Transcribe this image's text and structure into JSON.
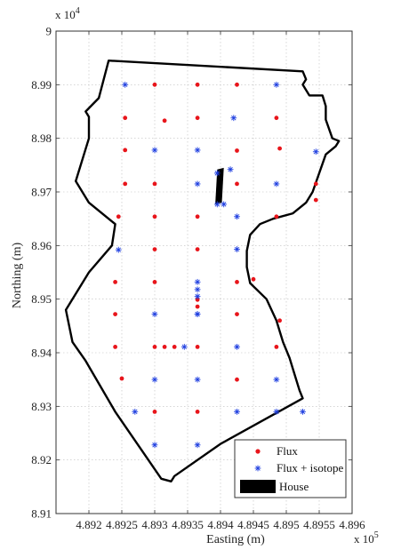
{
  "chart_data": {
    "type": "scatter",
    "title": "",
    "xlabel": "Easting (m)",
    "ylabel": "Northing (m)",
    "x_multiplier": "x 10",
    "x_multiplier_exp": "5",
    "y_multiplier": "x 10",
    "y_multiplier_exp": "4",
    "xlim": [
      489150,
      489600
    ],
    "ylim": [
      89100,
      90000
    ],
    "xticks": [
      489200,
      489250,
      489300,
      489350,
      489400,
      489450,
      489500,
      489550,
      489600
    ],
    "xtick_labels": [
      "4.892",
      "4.8925",
      "4.893",
      "4.8935",
      "4.894",
      "4.8945",
      "4.895",
      "4.8955",
      "4.896"
    ],
    "yticks": [
      89100,
      89200,
      89300,
      89400,
      89500,
      89600,
      89700,
      89800,
      89900,
      90000
    ],
    "ytick_labels": [
      "8.91",
      "8.92",
      "8.93",
      "8.94",
      "8.95",
      "8.96",
      "8.97",
      "8.98",
      "8.99",
      "9"
    ],
    "grid": true,
    "legend_position": "bottom-right",
    "colors": {
      "flux": "#e8151b",
      "isotope": "#1f3fe0",
      "house": "#000000",
      "boundary": "#000000"
    },
    "series": [
      {
        "name": "Flux",
        "marker": "dot",
        "x": [
          489300,
          489365,
          489425,
          489255,
          489315,
          489365,
          489485,
          489255,
          489425,
          489490,
          489255,
          489300,
          489425,
          489545,
          489245,
          489300,
          489365,
          489485,
          489300,
          489365,
          489240,
          489300,
          489425,
          489450,
          489365,
          489240,
          489425,
          489490,
          489240,
          489300,
          489315,
          489330,
          489365,
          489485,
          489250,
          489425,
          489300,
          489365,
          489545,
          489365
        ],
        "y": [
          89900,
          89900,
          89900,
          89838,
          89833,
          89838,
          89838,
          89778,
          89777,
          89781,
          89715,
          89715,
          89715,
          89715,
          89654,
          89654,
          89654,
          89654,
          89593,
          89593,
          89532,
          89532,
          89532,
          89537,
          89486,
          89472,
          89472,
          89460,
          89411,
          89411,
          89411,
          89411,
          89411,
          89411,
          89352,
          89350,
          89290,
          89290,
          89685,
          89499
        ]
      },
      {
        "name": "Flux + isotope",
        "marker": "asterisk",
        "x": [
          489255,
          489485,
          489300,
          489365,
          489545,
          489365,
          489485,
          489395,
          489415,
          489395,
          489405,
          489425,
          489245,
          489425,
          489365,
          489365,
          489365,
          489365,
          489300,
          489365,
          489345,
          489425,
          489300,
          489365,
          489485,
          489270,
          489425,
          489485,
          489525,
          489300,
          489365,
          489420
        ],
        "y": [
          89900,
          89900,
          89778,
          89778,
          89775,
          89715,
          89715,
          89735,
          89742,
          89677,
          89677,
          89654,
          89592,
          89593,
          89532,
          89518,
          89505,
          89472,
          89472,
          89472,
          89411,
          89411,
          89350,
          89350,
          89350,
          89290,
          89290,
          89290,
          89290,
          89228,
          89228,
          89838
        ]
      }
    ],
    "house": {
      "name": "House",
      "polygon": [
        [
          489395,
          89742
        ],
        [
          489405,
          89745
        ],
        [
          489402,
          89680
        ],
        [
          489392,
          89677
        ]
      ]
    },
    "boundary": [
      [
        489230,
        89945
      ],
      [
        489525,
        89925
      ],
      [
        489530,
        89910
      ],
      [
        489525,
        89900
      ],
      [
        489535,
        89880
      ],
      [
        489555,
        89880
      ],
      [
        489560,
        89860
      ],
      [
        489560,
        89835
      ],
      [
        489570,
        89800
      ],
      [
        489580,
        89795
      ],
      [
        489575,
        89785
      ],
      [
        489560,
        89770
      ],
      [
        489540,
        89700
      ],
      [
        489530,
        89680
      ],
      [
        489510,
        89660
      ],
      [
        489480,
        89650
      ],
      [
        489460,
        89640
      ],
      [
        489445,
        89620
      ],
      [
        489440,
        89590
      ],
      [
        489440,
        89560
      ],
      [
        489445,
        89530
      ],
      [
        489470,
        89500
      ],
      [
        489485,
        89460
      ],
      [
        489490,
        89440
      ],
      [
        489495,
        89420
      ],
      [
        489505,
        89390
      ],
      [
        489510,
        89370
      ],
      [
        489520,
        89330
      ],
      [
        489525,
        89315
      ],
      [
        489400,
        89230
      ],
      [
        489330,
        89170
      ],
      [
        489325,
        89160
      ],
      [
        489310,
        89165
      ],
      [
        489240,
        89290
      ],
      [
        489195,
        89385
      ],
      [
        489175,
        89420
      ],
      [
        489165,
        89480
      ],
      [
        489200,
        89550
      ],
      [
        489235,
        89600
      ],
      [
        489240,
        89640
      ],
      [
        489200,
        89680
      ],
      [
        489180,
        89720
      ],
      [
        489200,
        89800
      ],
      [
        489200,
        89840
      ],
      [
        489195,
        89850
      ],
      [
        489215,
        89875
      ],
      [
        489230,
        89945
      ]
    ]
  }
}
